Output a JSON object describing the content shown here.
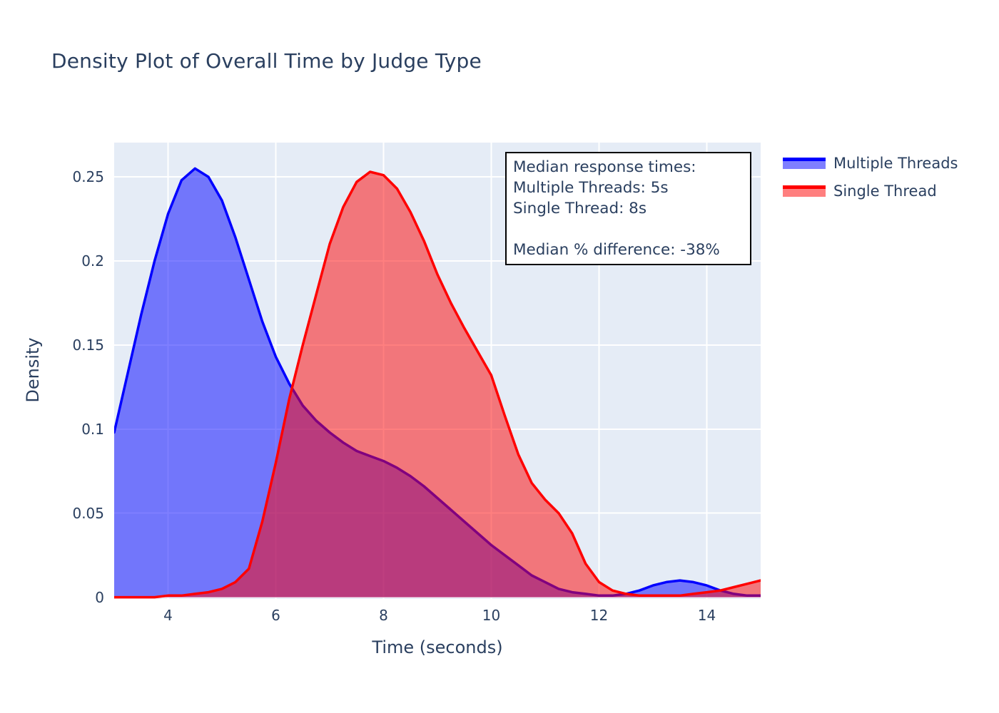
{
  "title": "Density Plot of Overall Time by Judge Type",
  "colors": {
    "text": "#2a3f5f",
    "plot_background": "#e5ecf6",
    "grid": "#ffffff",
    "annotation_border": "#000000",
    "annotation_background": "#ffffff",
    "blue_line": "#0000ff",
    "blue_fill": "rgba(0,0,255,0.5)",
    "red_line": "#ff0000",
    "red_fill": "rgba(255,0,0,0.5)"
  },
  "annotation": {
    "lines": [
      "Median response times:",
      "Multiple Threads: 5s",
      "Single Thread: 8s",
      "",
      "Median % difference: -38%"
    ]
  },
  "legend": {
    "items": [
      {
        "label": "Multiple Threads",
        "line_color": "#0000ff",
        "fill_color": "rgba(0,0,255,0.5)"
      },
      {
        "label": "Single Thread",
        "line_color": "#ff0000",
        "fill_color": "rgba(255,0,0,0.5)"
      }
    ]
  },
  "chart_data": {
    "type": "area",
    "subtype": "kde-density",
    "title": "Density Plot of Overall Time by Judge Type",
    "xlabel": "Time (seconds)",
    "ylabel": "Density",
    "xlim": [
      3,
      15
    ],
    "ylim": [
      -0.001,
      0.2704
    ],
    "x_ticks": [
      4,
      6,
      8,
      10,
      12,
      14
    ],
    "y_ticks": [
      0,
      0.05,
      0.1,
      0.15,
      0.2,
      0.25
    ],
    "grid": true,
    "legend_position": "top-right-outside",
    "median_multiple_threads_s": 5,
    "median_single_thread_s": 8,
    "median_pct_difference": -38,
    "x": [
      3,
      3.25,
      3.5,
      3.75,
      4,
      4.25,
      4.5,
      4.75,
      5,
      5.25,
      5.5,
      5.75,
      6,
      6.25,
      6.5,
      6.75,
      7,
      7.25,
      7.5,
      7.75,
      8,
      8.25,
      8.5,
      8.75,
      9,
      9.25,
      9.5,
      9.75,
      10,
      10.25,
      10.5,
      10.75,
      11,
      11.25,
      11.5,
      11.75,
      12,
      12.25,
      12.5,
      12.75,
      13,
      13.25,
      13.5,
      13.75,
      14,
      14.25,
      14.5,
      14.75,
      15
    ],
    "series": [
      {
        "name": "Multiple Threads",
        "line_color": "#0000ff",
        "fill_color": "rgba(0,0,255,0.5)",
        "peak": {
          "x": 4.5,
          "y": 0.255
        },
        "values": [
          0.098,
          0.133,
          0.168,
          0.2,
          0.228,
          0.248,
          0.255,
          0.25,
          0.236,
          0.214,
          0.189,
          0.164,
          0.143,
          0.127,
          0.114,
          0.105,
          0.098,
          0.092,
          0.087,
          0.084,
          0.081,
          0.077,
          0.072,
          0.066,
          0.059,
          0.052,
          0.045,
          0.038,
          0.031,
          0.025,
          0.019,
          0.013,
          0.009,
          0.005,
          0.003,
          0.002,
          0.001,
          0.001,
          0.002,
          0.004,
          0.007,
          0.009,
          0.01,
          0.009,
          0.007,
          0.004,
          0.002,
          0.001,
          0.001
        ]
      },
      {
        "name": "Single Thread",
        "line_color": "#ff0000",
        "fill_color": "rgba(255,0,0,0.5)",
        "peak": {
          "x": 7.75,
          "y": 0.253
        },
        "values": [
          0.0,
          0.0,
          0.0,
          0.0,
          0.001,
          0.001,
          0.002,
          0.003,
          0.005,
          0.009,
          0.017,
          0.045,
          0.08,
          0.118,
          0.15,
          0.18,
          0.21,
          0.232,
          0.247,
          0.253,
          0.251,
          0.243,
          0.229,
          0.212,
          0.192,
          0.175,
          0.16,
          0.146,
          0.132,
          0.108,
          0.085,
          0.068,
          0.058,
          0.05,
          0.038,
          0.02,
          0.009,
          0.004,
          0.002,
          0.001,
          0.001,
          0.001,
          0.001,
          0.002,
          0.003,
          0.004,
          0.006,
          0.008,
          0.01
        ]
      }
    ]
  }
}
